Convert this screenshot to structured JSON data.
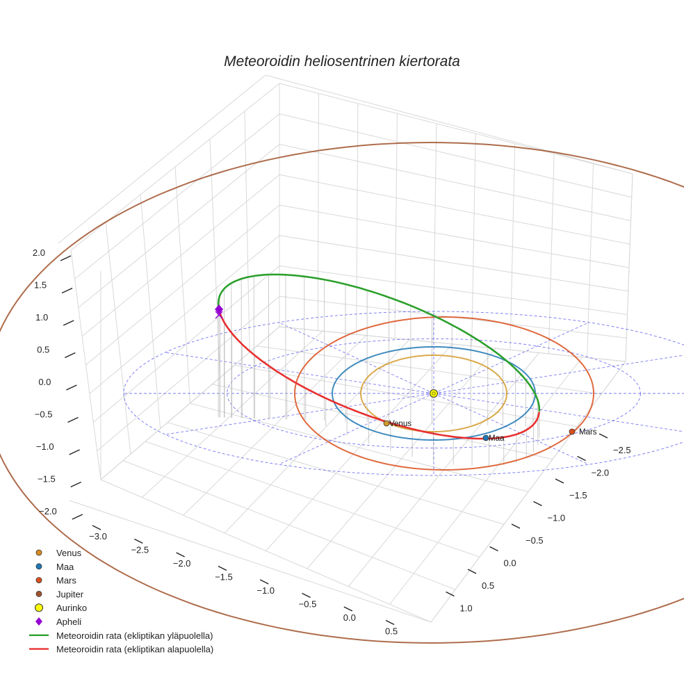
{
  "chart_data": {
    "type": "line3d",
    "title": "Meteoroidin heliosentrinen kiertorata",
    "axes": {
      "x": {
        "ticks": [
          "−3.0",
          "−2.5",
          "−2.0",
          "−1.5",
          "−1.0",
          "−0.5",
          "0.0",
          "0.5"
        ]
      },
      "y": {
        "ticks": [
          "−2.5",
          "−2.0",
          "−1.5",
          "−1.0",
          "−0.5",
          "0.0",
          "0.5",
          "1.0"
        ]
      },
      "z": {
        "ticks": [
          "2.0",
          "1.5",
          "1.0",
          "0.5",
          "0.0",
          "−0.5",
          "−1.0",
          "−1.5",
          "−2.0"
        ]
      },
      "xlim": [
        -3.2,
        0.7
      ],
      "ylim": [
        -2.7,
        1.1
      ],
      "zlim": [
        -2.0,
        2.0
      ]
    },
    "planets": [
      {
        "name": "Venus",
        "a_au": 0.72,
        "color": "#d29a2c",
        "label": "Venus"
      },
      {
        "name": "Maa",
        "a_au": 1.0,
        "color": "#1f77b4",
        "label": "Maa"
      },
      {
        "name": "Mars",
        "a_au": 1.52,
        "color": "#d94f1c",
        "label": "Mars"
      },
      {
        "name": "Jupiter",
        "a_au": 5.2,
        "color": "#a0522d",
        "label": ""
      }
    ],
    "sun": {
      "name": "Aurinko",
      "color": "#ffff00"
    },
    "reference_circles_au": [
      2.0,
      3.0
    ],
    "meteoroid": {
      "perihelion_au": 0.98,
      "aphelion_au": 3.1,
      "above_color": "#2ca02c",
      "below_color": "#e83030"
    },
    "legend": [
      {
        "label": "Venus",
        "marker": "circle",
        "color": "#d98c1f"
      },
      {
        "label": "Maa",
        "marker": "circle",
        "color": "#1f77b4"
      },
      {
        "label": "Mars",
        "marker": "circle",
        "color": "#d94f1c"
      },
      {
        "label": "Jupiter",
        "marker": "circle",
        "color": "#a0522d"
      },
      {
        "label": "Aurinko",
        "marker": "sun",
        "color": "#ffff00"
      },
      {
        "label": "Apheli",
        "marker": "diamond",
        "color": "#9400d3"
      },
      {
        "label": "Meteoroidin rata (ekliptikan yläpuolella)",
        "marker": "line",
        "color": "#2ca02c"
      },
      {
        "label": "Meteoroidin rata (ekliptikan alapuolella)",
        "marker": "line",
        "color": "#e83030"
      }
    ]
  }
}
